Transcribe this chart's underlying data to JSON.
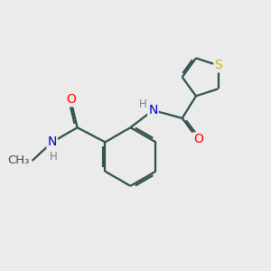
{
  "bg_color": "#ebebeb",
  "bond_color": "#2f4f4f",
  "bond_width": 1.6,
  "atom_colors": {
    "O": "#ff0000",
    "N": "#0000cc",
    "S": "#bbbb00",
    "C": "#2f4f4f",
    "H": "#708090"
  },
  "font_size": 10,
  "figsize": [
    3.0,
    3.0
  ],
  "dpi": 100
}
